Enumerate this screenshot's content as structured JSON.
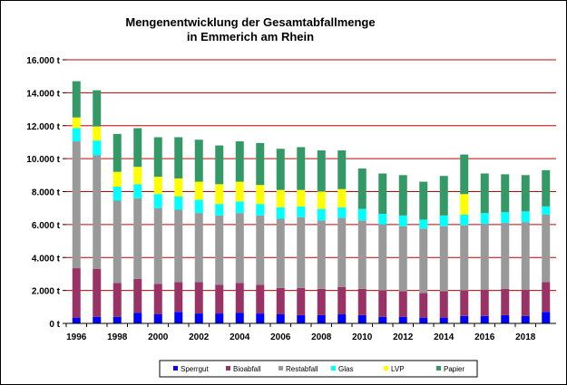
{
  "chart_data": {
    "type": "bar",
    "stacked": true,
    "title_line1": "Mengenentwicklung der Gesamtabfallmenge",
    "title_line2": "in Emmerich am Rhein",
    "xlabel": "",
    "ylabel": "",
    "ylim": [
      0,
      16000
    ],
    "yticks": [
      0,
      2000,
      4000,
      6000,
      8000,
      10000,
      12000,
      14000,
      16000
    ],
    "ytick_labels": [
      "0 t",
      "2.000 t",
      "4.000 t",
      "6.000 t",
      "8.000 t",
      "10.000 t",
      "12.000 t",
      "14.000 t",
      "16.000 t"
    ],
    "categories": [
      1996,
      1997,
      1998,
      1999,
      2000,
      2001,
      2002,
      2003,
      2004,
      2005,
      2006,
      2007,
      2008,
      2009,
      2010,
      2011,
      2012,
      2013,
      2014,
      2015,
      2016,
      2017,
      2018,
      2019
    ],
    "xtick_labels": [
      "1996",
      "",
      "1998",
      "",
      "2000",
      "",
      "2002",
      "",
      "2004",
      "",
      "2006",
      "",
      "2008",
      "",
      "2010",
      "",
      "2012",
      "",
      "2014",
      "",
      "2016",
      "",
      "2018",
      ""
    ],
    "grid": true,
    "legend_position": "bottom",
    "series": [
      {
        "name": "Sperrgut",
        "color": "#0000ff",
        "values": [
          350,
          400,
          400,
          650,
          550,
          700,
          600,
          600,
          650,
          600,
          550,
          500,
          500,
          550,
          500,
          400,
          400,
          350,
          350,
          450,
          450,
          500,
          450,
          700
        ]
      },
      {
        "name": "Bioabfall",
        "color": "#993366",
        "values": [
          3000,
          2900,
          2050,
          2050,
          1850,
          1800,
          1900,
          1750,
          1800,
          1750,
          1600,
          1650,
          1600,
          1650,
          1600,
          1600,
          1550,
          1500,
          1600,
          1550,
          1600,
          1600,
          1600,
          1800
        ]
      },
      {
        "name": "Restabfall",
        "color": "#999999",
        "values": [
          7700,
          6900,
          5000,
          4900,
          4600,
          4400,
          4200,
          4200,
          4250,
          4200,
          4200,
          4300,
          4150,
          4200,
          4150,
          4000,
          3950,
          3900,
          3950,
          3950,
          4000,
          4000,
          4100,
          4100
        ]
      },
      {
        "name": "Glas",
        "color": "#00ffff",
        "values": [
          800,
          900,
          850,
          850,
          850,
          800,
          800,
          700,
          700,
          700,
          700,
          650,
          700,
          650,
          700,
          650,
          650,
          550,
          650,
          650,
          650,
          650,
          650,
          500
        ]
      },
      {
        "name": "LVP",
        "color": "#ffff00",
        "values": [
          650,
          850,
          900,
          1050,
          1050,
          1100,
          1100,
          1200,
          1200,
          1150,
          1050,
          1000,
          1050,
          1100,
          0,
          0,
          0,
          0,
          0,
          1250,
          0,
          0,
          0,
          0
        ]
      },
      {
        "name": "Papier",
        "color": "#339966",
        "values": [
          2200,
          2200,
          2300,
          2350,
          2400,
          2500,
          2550,
          2350,
          2450,
          2550,
          2500,
          2600,
          2500,
          2350,
          2450,
          2450,
          2450,
          2300,
          2400,
          2400,
          2400,
          2300,
          2200,
          2200
        ]
      }
    ]
  }
}
